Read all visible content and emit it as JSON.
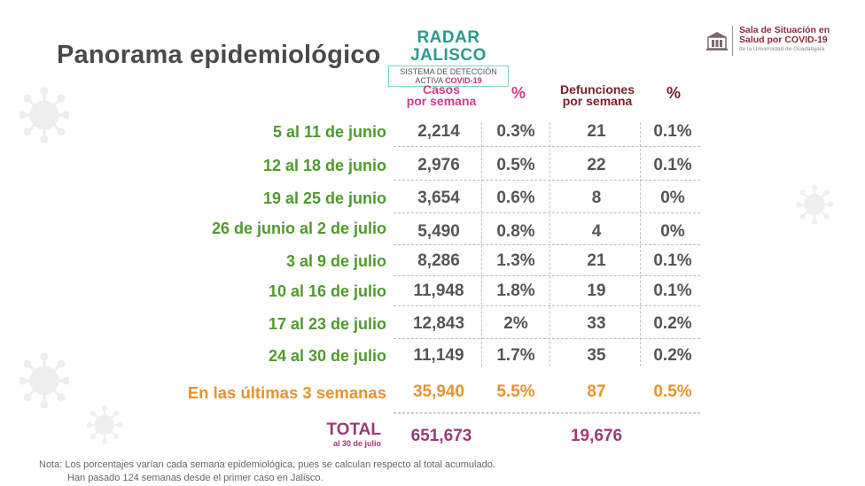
{
  "title": "Panorama epidemiológico",
  "radar": {
    "title": "RADAR JALISCO",
    "line1": "SISTEMA DE DETECCIÓN",
    "line2_prefix": "ACTIVA ",
    "line2_highlight": "COVID-19"
  },
  "logo": {
    "line1": "Sala de Situación en",
    "line2": "Salud por COVID-19",
    "line3": "de la Universidad de Guadalajara"
  },
  "headers": {
    "cases_line1": "Casos",
    "cases_line2": "por semana",
    "pct": "%",
    "deaths_line1": "Defunciones",
    "deaths_line2": "por semana"
  },
  "rows": [
    {
      "period": "5 al 11 de junio",
      "cases": "2,214",
      "cases_pct": "0.3%",
      "deaths": "21",
      "deaths_pct": "0.1%"
    },
    {
      "period": "12 al 18 de junio",
      "cases": "2,976",
      "cases_pct": "0.5%",
      "deaths": "22",
      "deaths_pct": "0.1%"
    },
    {
      "period": "19 al 25 de junio",
      "cases": "3,654",
      "cases_pct": "0.6%",
      "deaths": "8",
      "deaths_pct": "0%"
    },
    {
      "period": "26 de junio al 2 de julio",
      "cases": "5,490",
      "cases_pct": "0.8%",
      "deaths": "4",
      "deaths_pct": "0%"
    },
    {
      "period": "3 al 9 de julio",
      "cases": "8,286",
      "cases_pct": "1.3%",
      "deaths": "21",
      "deaths_pct": "0.1%"
    },
    {
      "period": "10 al 16 de julio",
      "cases": "11,948",
      "cases_pct": "1.8%",
      "deaths": "19",
      "deaths_pct": "0.1%"
    },
    {
      "period": "17 al 23 de julio",
      "cases": "12,843",
      "cases_pct": "2%",
      "deaths": "33",
      "deaths_pct": "0.2%"
    },
    {
      "period": "24 al 30 de julio",
      "cases": "11,149",
      "cases_pct": "1.7%",
      "deaths": "35",
      "deaths_pct": "0.2%"
    }
  ],
  "summary": {
    "label": "En las últimas 3 semanas",
    "cases": "35,940",
    "cases_pct": "5.5%",
    "deaths": "87",
    "deaths_pct": "0.5%"
  },
  "total": {
    "label": "TOTAL",
    "sublabel": "al 30 de julio",
    "cases": "651,673",
    "deaths": "19,676"
  },
  "note": {
    "line1": "Nota: Los porcentajes varían cada semana epidemiológica, pues se calculan respecto al total acumulado.",
    "line2": "Han pasado 124 semanas desde el primer caso en Jalisco."
  },
  "colors": {
    "period_green": "#4f9a2c",
    "summary_orange": "#e8922e",
    "total_purple": "#9b3a78",
    "cases_header_pink": "#d23c8a",
    "deaths_header_maroon": "#7a1f2b",
    "radar_teal": "#2c9a8d"
  },
  "icons": [
    "virus-icon",
    "university-seal-icon"
  ]
}
